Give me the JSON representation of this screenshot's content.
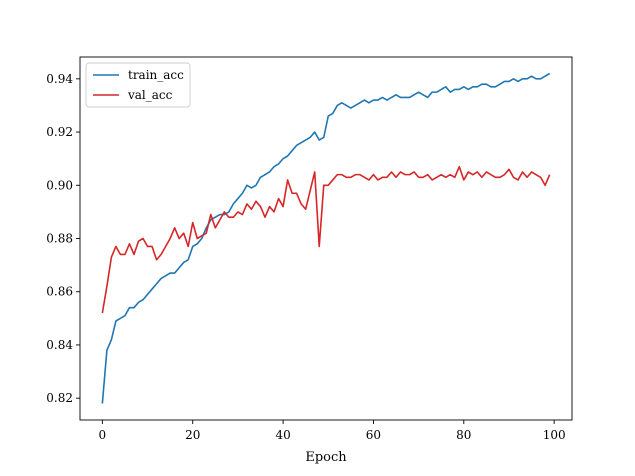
{
  "chart_data": {
    "type": "line",
    "xlabel": "Epoch",
    "ylabel": "",
    "xlim": [
      -4.95,
      103.95
    ],
    "ylim": [
      0.8118,
      0.9482
    ],
    "xticks": [
      0,
      20,
      40,
      60,
      80,
      100
    ],
    "yticks": [
      0.82,
      0.84,
      0.86,
      0.88,
      0.9,
      0.92,
      0.94
    ],
    "xtick_labels": [
      "0",
      "20",
      "40",
      "60",
      "80",
      "100"
    ],
    "ytick_labels": [
      "0.82",
      "0.84",
      "0.86",
      "0.88",
      "0.90",
      "0.92",
      "0.94"
    ],
    "grid": false,
    "legend_position": "upper-left",
    "series": [
      {
        "name": "train_acc",
        "color": "#1f77b4",
        "x": [
          0,
          1,
          2,
          3,
          4,
          5,
          6,
          7,
          8,
          9,
          10,
          11,
          12,
          13,
          14,
          15,
          16,
          17,
          18,
          19,
          20,
          21,
          22,
          23,
          24,
          25,
          26,
          27,
          28,
          29,
          30,
          31,
          32,
          33,
          34,
          35,
          36,
          37,
          38,
          39,
          40,
          41,
          42,
          43,
          44,
          45,
          46,
          47,
          48,
          49,
          50,
          51,
          52,
          53,
          54,
          55,
          56,
          57,
          58,
          59,
          60,
          61,
          62,
          63,
          64,
          65,
          66,
          67,
          68,
          69,
          70,
          71,
          72,
          73,
          74,
          75,
          76,
          77,
          78,
          79,
          80,
          81,
          82,
          83,
          84,
          85,
          86,
          87,
          88,
          89,
          90,
          91,
          92,
          93,
          94,
          95,
          96,
          97,
          98,
          99
        ],
        "values": [
          0.818,
          0.838,
          0.842,
          0.849,
          0.85,
          0.851,
          0.854,
          0.854,
          0.856,
          0.857,
          0.859,
          0.861,
          0.863,
          0.865,
          0.866,
          0.867,
          0.867,
          0.869,
          0.871,
          0.872,
          0.877,
          0.878,
          0.88,
          0.884,
          0.887,
          0.888,
          0.889,
          0.889,
          0.89,
          0.893,
          0.895,
          0.897,
          0.9,
          0.899,
          0.9,
          0.903,
          0.904,
          0.905,
          0.907,
          0.908,
          0.91,
          0.911,
          0.913,
          0.915,
          0.916,
          0.917,
          0.918,
          0.92,
          0.917,
          0.918,
          0.926,
          0.927,
          0.93,
          0.931,
          0.93,
          0.929,
          0.93,
          0.931,
          0.932,
          0.931,
          0.932,
          0.932,
          0.933,
          0.932,
          0.933,
          0.934,
          0.933,
          0.933,
          0.933,
          0.934,
          0.935,
          0.934,
          0.933,
          0.935,
          0.935,
          0.936,
          0.937,
          0.935,
          0.936,
          0.936,
          0.937,
          0.936,
          0.937,
          0.937,
          0.938,
          0.938,
          0.937,
          0.937,
          0.938,
          0.939,
          0.939,
          0.94,
          0.939,
          0.94,
          0.94,
          0.941,
          0.94,
          0.94,
          0.941,
          0.942
        ]
      },
      {
        "name": "val_acc",
        "color": "#d62728",
        "x": [
          0,
          1,
          2,
          3,
          4,
          5,
          6,
          7,
          8,
          9,
          10,
          11,
          12,
          13,
          14,
          15,
          16,
          17,
          18,
          19,
          20,
          21,
          22,
          23,
          24,
          25,
          26,
          27,
          28,
          29,
          30,
          31,
          32,
          33,
          34,
          35,
          36,
          37,
          38,
          39,
          40,
          41,
          42,
          43,
          44,
          45,
          46,
          47,
          48,
          49,
          50,
          51,
          52,
          53,
          54,
          55,
          56,
          57,
          58,
          59,
          60,
          61,
          62,
          63,
          64,
          65,
          66,
          67,
          68,
          69,
          70,
          71,
          72,
          73,
          74,
          75,
          76,
          77,
          78,
          79,
          80,
          81,
          82,
          83,
          84,
          85,
          86,
          87,
          88,
          89,
          90,
          91,
          92,
          93,
          94,
          95,
          96,
          97,
          98,
          99
        ],
        "values": [
          0.852,
          0.862,
          0.873,
          0.877,
          0.874,
          0.874,
          0.878,
          0.874,
          0.879,
          0.88,
          0.877,
          0.877,
          0.872,
          0.874,
          0.877,
          0.88,
          0.884,
          0.88,
          0.882,
          0.877,
          0.886,
          0.88,
          0.881,
          0.882,
          0.889,
          0.884,
          0.887,
          0.89,
          0.888,
          0.888,
          0.89,
          0.889,
          0.893,
          0.891,
          0.894,
          0.892,
          0.888,
          0.892,
          0.89,
          0.895,
          0.892,
          0.902,
          0.897,
          0.897,
          0.893,
          0.891,
          0.898,
          0.905,
          0.877,
          0.9,
          0.9,
          0.902,
          0.904,
          0.904,
          0.903,
          0.903,
          0.904,
          0.904,
          0.903,
          0.902,
          0.904,
          0.902,
          0.903,
          0.903,
          0.905,
          0.903,
          0.905,
          0.904,
          0.904,
          0.905,
          0.903,
          0.903,
          0.904,
          0.902,
          0.903,
          0.904,
          0.903,
          0.904,
          0.903,
          0.907,
          0.902,
          0.905,
          0.904,
          0.905,
          0.903,
          0.905,
          0.904,
          0.903,
          0.903,
          0.904,
          0.906,
          0.903,
          0.902,
          0.905,
          0.903,
          0.905,
          0.904,
          0.903,
          0.9,
          0.904
        ]
      }
    ]
  }
}
